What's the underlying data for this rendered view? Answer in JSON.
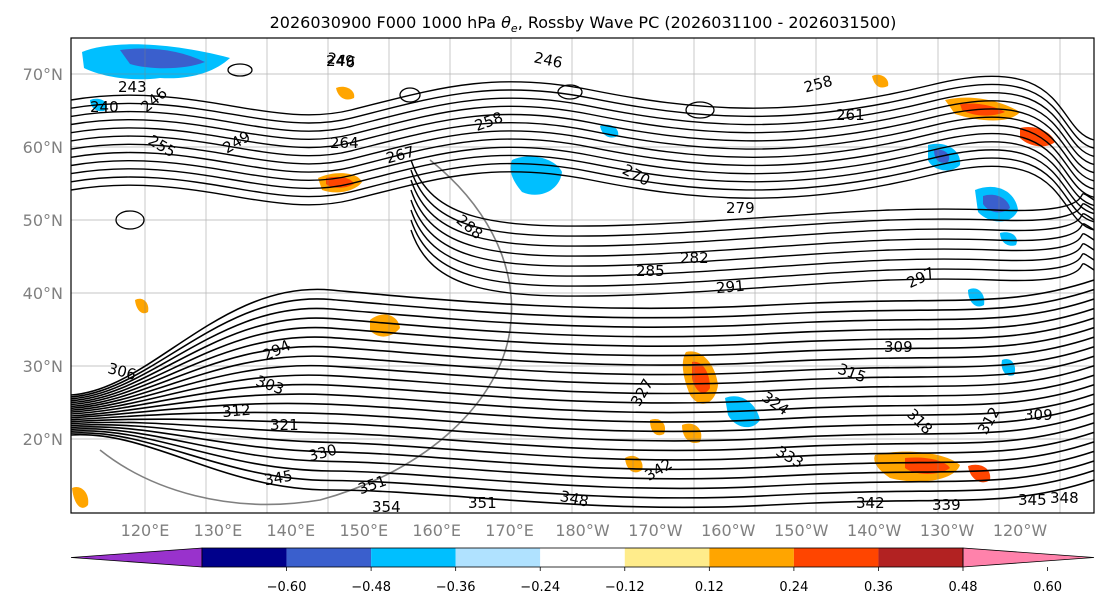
{
  "title_parts": {
    "prefix": "2026030900 F000 1000 hPa ",
    "symbol": "θ",
    "subscript": "e",
    "suffix": ", Rossby Wave PC (2026031100 - 2026031500)"
  },
  "map": {
    "lat_labels": [
      "70°N",
      "60°N",
      "50°N",
      "40°N",
      "30°N",
      "20°N"
    ],
    "lon_labels": [
      "120°E",
      "130°E",
      "140°E",
      "150°E",
      "160°E",
      "170°E",
      "180°W",
      "170°W",
      "160°W",
      "150°W",
      "140°W",
      "130°W",
      "120°W"
    ],
    "grid": true,
    "contour_labels": [
      "246",
      "249",
      "243",
      "246",
      "240",
      "255",
      "249",
      "258",
      "264",
      "267",
      "261",
      "258",
      "270",
      "279",
      "288",
      "282",
      "285",
      "291",
      "297",
      "294",
      "303",
      "306",
      "309",
      "312",
      "321",
      "315",
      "324",
      "318",
      "312",
      "309",
      "330",
      "333",
      "345",
      "351",
      "354",
      "351",
      "348",
      "342",
      "342",
      "339",
      "345",
      "348",
      "327"
    ]
  },
  "colorbar": {
    "tick_labels": [
      "−0.60",
      "−0.48",
      "−0.36",
      "−0.24",
      "−0.12",
      "0.12",
      "0.24",
      "0.36",
      "0.48",
      "0.60"
    ],
    "colors": [
      "#9932cc",
      "#00008b",
      "#3a5fcd",
      "#00bfff",
      "#b0e2ff",
      "#ffffff",
      "#ffec8b",
      "#ffa500",
      "#ff4500",
      "#b22222",
      "#ff82ab"
    ]
  }
}
